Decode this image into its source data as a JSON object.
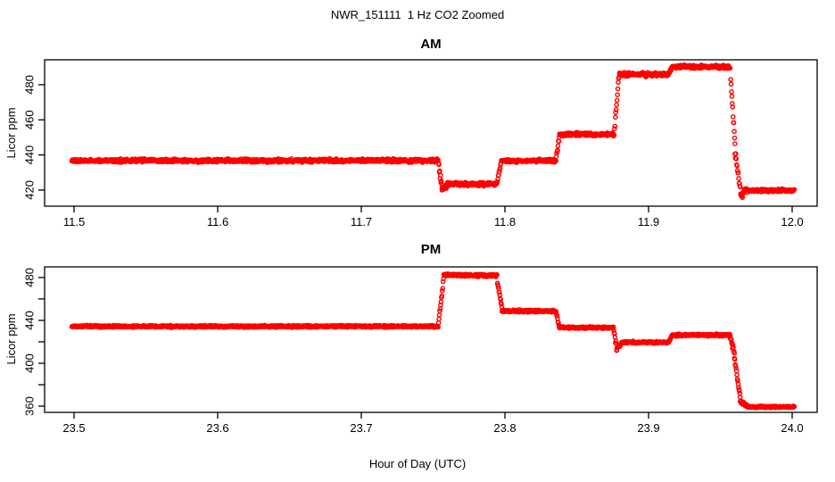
{
  "page_title": "NWR_151111  1 Hz CO2 Zoomed",
  "xlabel": "Hour of Day (UTC)",
  "point_color": "#FF0000",
  "axis_color": "#000000",
  "background_color": "#FFFFFF",
  "chart_data": [
    {
      "type": "scatter",
      "title": "AM",
      "ylabel": "Licor ppm",
      "marker": "open-circle",
      "sample_rate_hz": 1,
      "grid": false,
      "legend": false,
      "xlim": [
        11.4795,
        12.0174
      ],
      "ylim": [
        410.8,
        494.2
      ],
      "xticks": {
        "values": [
          11.5,
          11.6,
          11.7,
          11.8,
          11.9,
          12.0
        ],
        "labels": [
          "11.5",
          "11.6",
          "11.7",
          "11.8",
          "11.9",
          "12.0"
        ]
      },
      "yticks": {
        "values": [
          420,
          440,
          460,
          480
        ],
        "labels": [
          "420",
          "440",
          "460",
          "480"
        ],
        "minor": []
      },
      "segments_format": "[t_start_hr, t_end_hr, value_start_ppm, value_end_ppm, noise_sd_ppm]",
      "segments": [
        [
          11.4985,
          11.7535,
          436.8,
          436.8,
          0.45
        ],
        [
          11.7538,
          11.7562,
          434.8,
          421.5,
          0.9
        ],
        [
          11.7562,
          11.76,
          420.4,
          423.0,
          0.8
        ],
        [
          11.76,
          11.7945,
          423.4,
          423.4,
          0.45
        ],
        [
          11.7948,
          11.7972,
          425.5,
          434.5,
          0.7
        ],
        [
          11.7975,
          11.8355,
          436.8,
          436.8,
          0.45
        ],
        [
          11.8358,
          11.8378,
          439.0,
          449.5,
          0.7
        ],
        [
          11.838,
          11.876,
          451.7,
          451.7,
          0.45
        ],
        [
          11.8763,
          11.8792,
          454.5,
          483.0,
          0.7
        ],
        [
          11.8795,
          11.9142,
          485.9,
          485.9,
          0.5
        ],
        [
          11.9145,
          11.9162,
          487.0,
          489.5,
          0.4
        ],
        [
          11.9165,
          11.9568,
          490.4,
          490.0,
          0.5
        ],
        [
          11.9572,
          11.9602,
          483.0,
          446.0,
          1.2
        ],
        [
          11.9602,
          11.9642,
          441.5,
          417.6,
          1.3
        ],
        [
          11.9642,
          11.9668,
          416.5,
          419.4,
          0.9
        ],
        [
          11.9668,
          12.0015,
          419.8,
          419.8,
          0.4
        ]
      ]
    },
    {
      "type": "scatter",
      "title": "PM",
      "ylabel": "Licor ppm",
      "marker": "open-circle",
      "sample_rate_hz": 1,
      "grid": false,
      "legend": false,
      "xlim": [
        23.4795,
        24.0174
      ],
      "ylim": [
        354.2,
        489.9
      ],
      "xticks": {
        "values": [
          23.5,
          23.6,
          23.7,
          23.8,
          23.9,
          24.0
        ],
        "labels": [
          "23.5",
          "23.6",
          "23.7",
          "23.8",
          "23.9",
          "24.0"
        ]
      },
      "yticks": {
        "values": [
          360,
          400,
          440,
          480
        ],
        "labels": [
          "360",
          "400",
          "440",
          "480"
        ],
        "minor": [
          380,
          420,
          460
        ]
      },
      "segments_format": "[t_start_hr, t_end_hr, value_start_ppm, value_end_ppm, noise_sd_ppm]",
      "segments": [
        [
          23.4985,
          23.7535,
          434.4,
          434.4,
          0.45
        ],
        [
          23.7538,
          23.7572,
          438.0,
          477.5,
          0.9
        ],
        [
          23.7575,
          23.7945,
          482.4,
          481.8,
          0.55
        ],
        [
          23.7948,
          23.7978,
          475.5,
          452.5,
          0.9
        ],
        [
          23.798,
          23.8355,
          448.8,
          448.5,
          0.5
        ],
        [
          23.8358,
          23.8375,
          446.5,
          436.0,
          0.5
        ],
        [
          23.8378,
          23.8755,
          433.3,
          433.3,
          0.45
        ],
        [
          23.8758,
          23.8778,
          430.5,
          414.0,
          1.1
        ],
        [
          23.8778,
          23.8812,
          413.4,
          418.6,
          1.0
        ],
        [
          23.8812,
          23.9142,
          419.5,
          419.5,
          0.45
        ],
        [
          23.9145,
          23.9162,
          420.8,
          425.0,
          0.5
        ],
        [
          23.9165,
          23.9565,
          426.3,
          426.3,
          0.5
        ],
        [
          23.9568,
          23.9598,
          424.5,
          409.0,
          1.0
        ],
        [
          23.9598,
          23.9638,
          405.5,
          367.5,
          1.0
        ],
        [
          23.9638,
          23.9688,
          364.5,
          359.8,
          0.7
        ],
        [
          23.9688,
          24.0015,
          359.3,
          359.3,
          0.4
        ]
      ]
    }
  ]
}
